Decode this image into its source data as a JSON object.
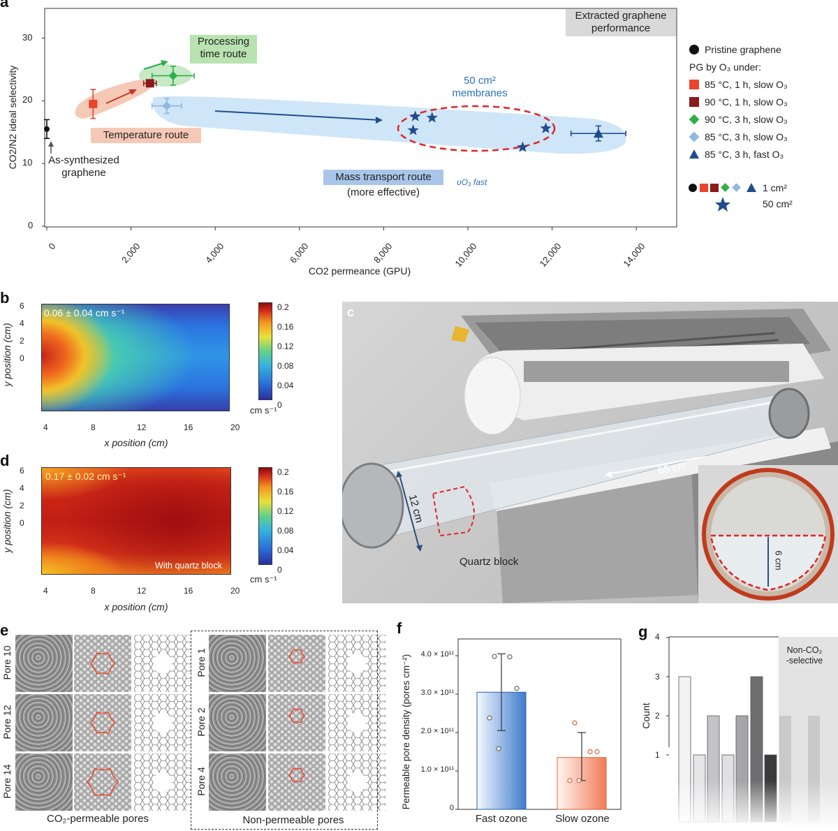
{
  "panel_letters": {
    "a": "a",
    "b": "b",
    "c": "c",
    "d": "d",
    "e": "e",
    "f": "f",
    "g": "g"
  },
  "panel_a": {
    "box_title_line1": "Extracted graphene",
    "box_title_line2": "performance",
    "ylabel": "CO2/N2 ideal selectivity",
    "xlabel": "CO2 permeance (GPU)",
    "y_ticks": [
      "0",
      "10",
      "20",
      "30"
    ],
    "x_ticks": [
      "0",
      "2,000",
      "4,000",
      "6,000",
      "8,000",
      "10,000",
      "12,000",
      "14,000"
    ],
    "annotations": {
      "processing_line1": "Processing",
      "processing_line2": "time route",
      "temperature": "Temperature route",
      "mass_line1": "Mass transport route",
      "mass_line2": "(more effective)",
      "membranes_line1": "50 cm²",
      "membranes_line2": "membranes",
      "as_synth_line1": "As-synthesized",
      "as_synth_line2": "graphene",
      "vo3": "υO₃ fast"
    },
    "legend": {
      "pristine": "Pristine graphene",
      "pg_by": "PG by O₃ under:",
      "items": [
        "85 °C, 1 h, slow O₃",
        "90 °C, 1 h, slow O₃",
        "90 °C, 3 h, slow O₃",
        "85 °C, 3 h, slow O₃",
        "85 °C, 3 h, fast O₃"
      ],
      "size_1": "1 cm²",
      "size_50": "50 cm²"
    },
    "colors": {
      "pristine": "#111111",
      "c85_1h": "#e8452c",
      "c90_1h": "#8b1a1a",
      "c90_3h": "#2fae4a",
      "c85_3h_slow": "#8fb7e0",
      "c85_3h_fast": "#1f4e8c",
      "star": "#1f4e8c"
    }
  },
  "chart_data": [
    {
      "type": "scatter",
      "title": "Extracted graphene performance",
      "xlabel": "CO2 permeance (GPU)",
      "ylabel": "CO2/N2 ideal selectivity",
      "xlim": [
        0,
        15000
      ],
      "ylim": [
        0,
        35
      ],
      "series": [
        {
          "name": "Pristine graphene",
          "points": [
            {
              "x": 0,
              "y": 15.5,
              "xerr": 0,
              "yerr": 1.5
            }
          ]
        },
        {
          "name": "85 °C, 1 h, slow O3",
          "points": [
            {
              "x": 1100,
              "y": 19.5,
              "xerr": 0,
              "yerr": 2.3
            }
          ]
        },
        {
          "name": "90 °C, 1 h, slow O3",
          "points": [
            {
              "x": 2450,
              "y": 22.8,
              "xerr": 150,
              "yerr": 0.5
            }
          ]
        },
        {
          "name": "90 °C, 3 h, slow O3",
          "points": [
            {
              "x": 3000,
              "y": 24.0,
              "xerr": 500,
              "yerr": 1.5
            }
          ]
        },
        {
          "name": "85 °C, 3 h, slow O3",
          "points": [
            {
              "x": 2850,
              "y": 19.2,
              "xerr": 350,
              "yerr": 1.2
            }
          ]
        },
        {
          "name": "85 °C, 3 h, fast O3",
          "points": [
            {
              "x": 13100,
              "y": 14.8,
              "xerr": 650,
              "yerr": 1.2
            }
          ]
        },
        {
          "name": "50 cm2",
          "points": [
            {
              "x": 8750,
              "y": 17.5
            },
            {
              "x": 9150,
              "y": 17.3
            },
            {
              "x": 8700,
              "y": 15.3
            },
            {
              "x": 11850,
              "y": 15.6
            },
            {
              "x": 11300,
              "y": 12.6
            }
          ]
        }
      ]
    },
    {
      "type": "heatmap",
      "title": "0.06 ± 0.04 cm s⁻¹",
      "xlabel": "x position (cm)",
      "ylabel": "y position (cm)",
      "xlim": [
        3.5,
        20
      ],
      "ylim": [
        -0.3,
        6
      ],
      "x_ticks": [
        4,
        8,
        12,
        16,
        20
      ],
      "y_ticks": [
        0,
        2,
        4,
        6
      ],
      "colorbar_ticks": [
        0,
        0.04,
        0.08,
        0.12,
        0.16,
        0.2
      ],
      "colorbar_unit": "cm s⁻¹"
    },
    {
      "type": "heatmap",
      "title": "0.17 ± 0.02 cm s⁻¹",
      "annotation": "With quartz block",
      "xlabel": "x position (cm)",
      "ylabel": "y position (cm)",
      "xlim": [
        3.5,
        20
      ],
      "ylim": [
        -0.3,
        6
      ],
      "x_ticks": [
        4,
        8,
        12,
        16,
        20
      ],
      "y_ticks": [
        0,
        2,
        4,
        6
      ],
      "colorbar_ticks": [
        0,
        0.04,
        0.08,
        0.12,
        0.16,
        0.2
      ],
      "colorbar_unit": "cm s⁻¹"
    },
    {
      "type": "bar",
      "ylabel": "Permeable pore density (pores cm⁻²)",
      "categories": [
        "Fast ozone",
        "Slow ozone"
      ],
      "values": [
        305000000000.0,
        135000000000.0
      ],
      "errors": [
        [
          100000000000.0,
          100000000000.0
        ],
        [
          60000000000.0,
          65000000000.0
        ]
      ],
      "points": [
        [
          398000000000.0,
          397000000000.0,
          315000000000.0,
          238000000000.0,
          158000000000.0
        ],
        [
          225000000000.0,
          150000000000.0,
          150000000000.0,
          75000000000.0,
          75000000000.0
        ]
      ],
      "ylim": [
        0,
        440000000000.0
      ],
      "y_ticks": [
        "0",
        "1.0 × 10¹¹",
        "2.0 × 10¹¹",
        "3.0 × 10¹¹",
        "4.0 × 10¹¹"
      ]
    },
    {
      "type": "bar",
      "ylabel": "Count",
      "ylim": [
        0,
        4
      ],
      "y_ticks": [
        1,
        2,
        3,
        4
      ],
      "values": [
        3,
        1,
        2,
        1,
        2,
        3,
        1,
        2,
        2
      ],
      "annotation": "Non-CO₂ -selective"
    }
  ],
  "panel_b": {
    "stat": "0.06 ± 0.04 cm s⁻¹",
    "x_ticks": [
      "4",
      "8",
      "12",
      "16",
      "20"
    ],
    "y_ticks": [
      "0",
      "2",
      "4",
      "6"
    ],
    "cbar_ticks": [
      "0",
      "0.04",
      "0.08",
      "0.12",
      "0.16",
      "0.2"
    ],
    "cbar_unit": "cm s⁻¹",
    "xlabel": "x position (cm)",
    "ylabel": "y position (cm)"
  },
  "panel_d": {
    "stat": "0.17 ± 0.02 cm s⁻¹",
    "note": "With quartz block",
    "x_ticks": [
      "4",
      "8",
      "12",
      "16",
      "20"
    ],
    "y_ticks": [
      "0",
      "2",
      "4",
      "6"
    ],
    "cbar_ticks": [
      "0",
      "0.04",
      "0.08",
      "0.12",
      "0.16",
      "0.2"
    ],
    "cbar_unit": "cm s⁻¹",
    "xlabel": "x position (cm)",
    "ylabel": "y position (cm)"
  },
  "panel_c": {
    "len_55": "55 cm",
    "len_12": "12 cm",
    "quartz": "Quartz block",
    "len_6": "6 cm"
  },
  "panel_e": {
    "left_rows": [
      "Pore 10",
      "Pore 12",
      "Pore 14"
    ],
    "right_rows": [
      "Pore 1",
      "Pore 2",
      "Pore 4"
    ],
    "left_caption": "CO₂-permeable pores",
    "right_caption": "Non-permeable pores"
  },
  "panel_f": {
    "ylabel": "Permeable pore density (pores cm⁻²)",
    "y_ticks": [
      "0",
      "1.0 × 10¹¹",
      "2.0 × 10¹¹",
      "3.0 × 10¹¹",
      "4.0 × 10¹¹"
    ],
    "cats": [
      "Fast ozone",
      "Slow ozone"
    ]
  },
  "panel_g": {
    "ylabel": "Count",
    "y_ticks": [
      "1",
      "2",
      "3",
      "4"
    ],
    "non_sel_line1": "Non-CO₂",
    "non_sel_line2": "-selective"
  }
}
